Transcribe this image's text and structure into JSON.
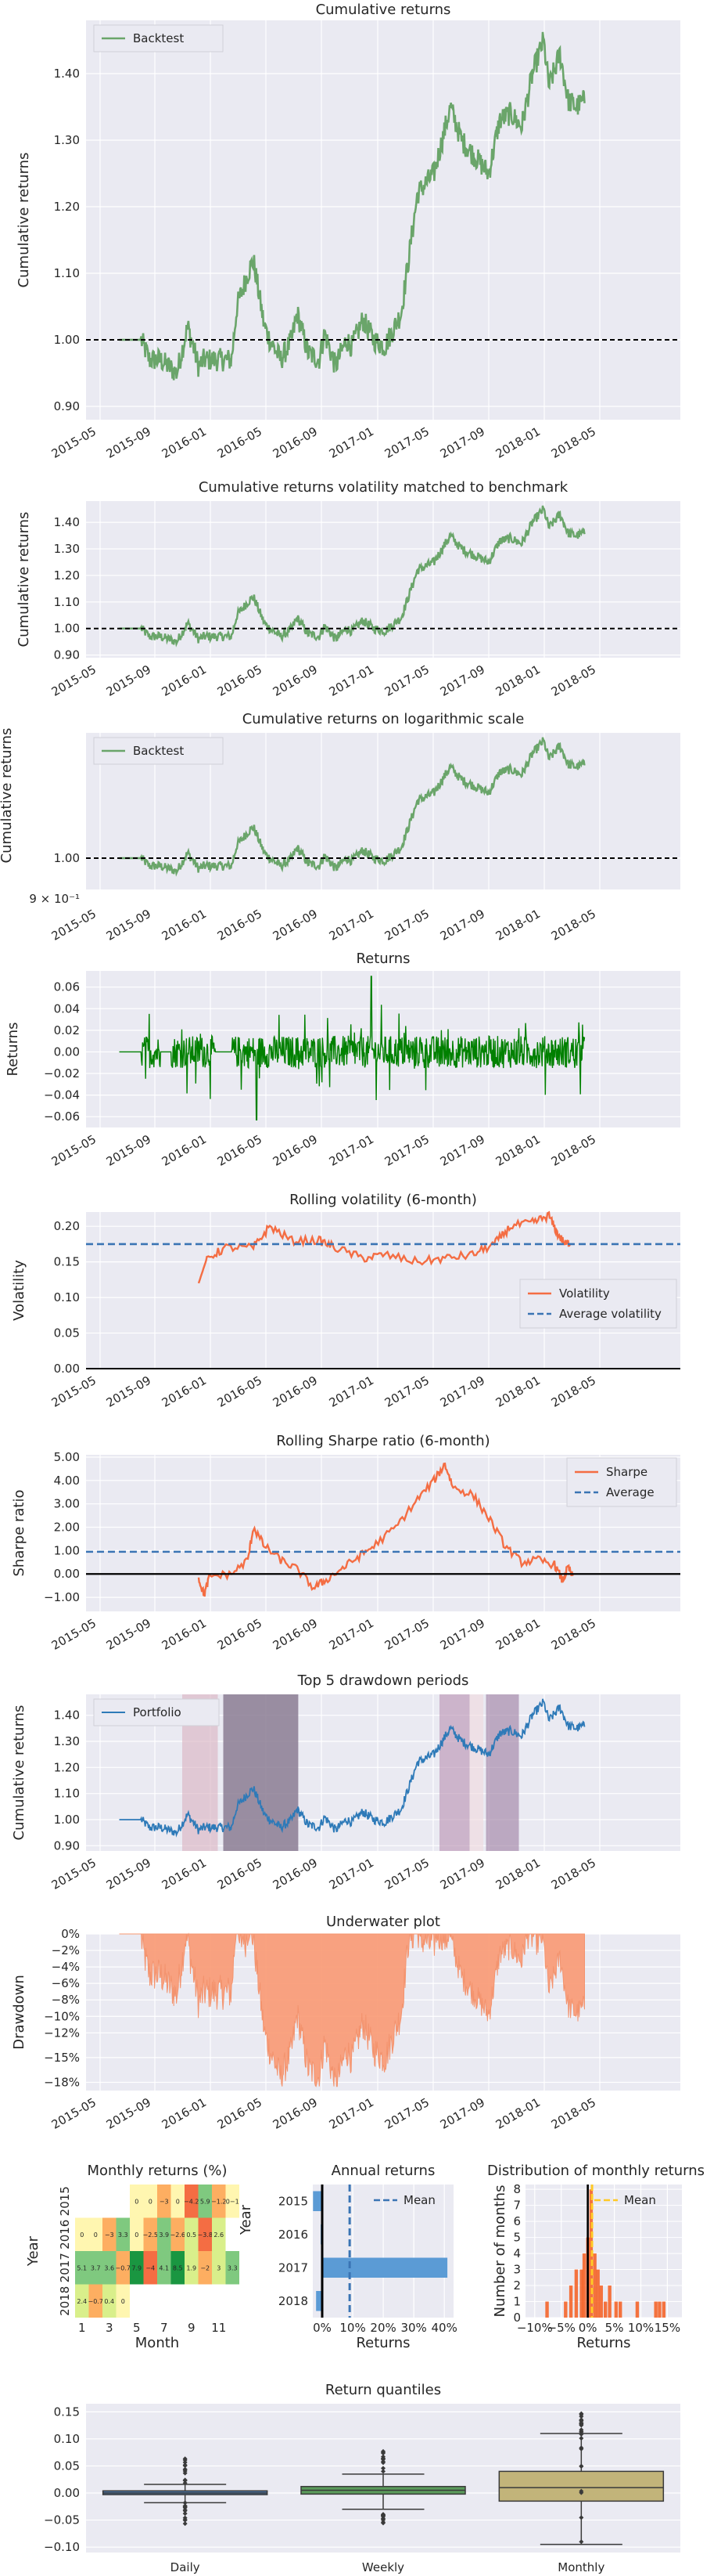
{
  "dates": [
    "2015-05",
    "2015-09",
    "2016-01",
    "2016-05",
    "2016-09",
    "2017-01",
    "2017-05",
    "2017-09",
    "2018-01",
    "2018-05"
  ],
  "colors": {
    "backtest": "#6aa56a",
    "returns": "#008000",
    "orange": "#f46d43",
    "blue_dash": "#3a74b4",
    "portfolio": "#2e7ab8",
    "underwater": "#fa9a74",
    "bar": "#5b9bd5",
    "hist": "#f65d1e",
    "mean_yellow": "#ffc926",
    "box_daily": "#4a76a8",
    "box_weekly": "#5a9a5a",
    "box_monthly": "#c2b47a"
  },
  "p1": {
    "title": "Cumulative returns",
    "ylabel": "Cumulative returns",
    "legend": "Backtest",
    "yticks": [
      "0.90",
      "1.00",
      "1.10",
      "1.20",
      "1.30",
      "1.40"
    ],
    "ymin": 0.88,
    "ymax": 1.48
  },
  "p2": {
    "title": "Cumulative returns volatility matched to benchmark",
    "ylabel": "Cumulative returns",
    "yticks": [
      "0.90",
      "1.00",
      "1.10",
      "1.20",
      "1.30",
      "1.40"
    ],
    "ymin": 0.89,
    "ymax": 1.48
  },
  "p3": {
    "title": "Cumulative returns on logarithmic scale",
    "ylabel": "Cumulative returns",
    "legend": "Backtest",
    "yticks": [
      "9 × 10⁻¹",
      "1.00"
    ],
    "ymin": 0.88,
    "ymax": 1.48
  },
  "p4": {
    "title": "Returns",
    "ylabel": "Returns",
    "yticks": [
      "−0.06",
      "−0.04",
      "−0.02",
      "0.00",
      "0.02",
      "0.04",
      "0.06"
    ],
    "ymin": -0.07,
    "ymax": 0.075
  },
  "p5": {
    "title": "Rolling volatility (6-month)",
    "ylabel": "Volatility",
    "legend": [
      "Volatility",
      "Average volatility"
    ],
    "yticks": [
      "0.00",
      "0.05",
      "0.10",
      "0.15",
      "0.20"
    ],
    "ymin": 0.0,
    "ymax": 0.22,
    "avg": 0.175
  },
  "p6": {
    "title": "Rolling Sharpe ratio (6-month)",
    "ylabel": "Sharpe ratio",
    "legend": [
      "Sharpe",
      "Average"
    ],
    "yticks": [
      "−1.00",
      "0.00",
      "1.00",
      "2.00",
      "3.00",
      "4.00",
      "5.00"
    ],
    "ymin": -1.6,
    "ymax": 5.1,
    "avg": 0.95
  },
  "p7": {
    "title": "Top 5 drawdown periods",
    "ylabel": "Cumulative returns",
    "legend": "Portfolio",
    "yticks": [
      "0.90",
      "1.00",
      "1.10",
      "1.20",
      "1.30",
      "1.40"
    ],
    "ymin": 0.88,
    "ymax": 1.48
  },
  "p8": {
    "title": "Underwater plot",
    "ylabel": "Drawdown",
    "yticks": [
      "0%",
      "−2%",
      "−4%",
      "−6%",
      "−8%",
      "−10%",
      "−12%",
      "−15%",
      "−18%"
    ]
  },
  "heat": {
    "title": "Monthly returns (%)",
    "ylabel": "Year",
    "xlabel": "Month",
    "years": [
      "2015",
      "2016",
      "2017",
      "2018"
    ],
    "months": [
      "1",
      "3",
      "5",
      "7",
      "9",
      "11"
    ],
    "cells": [
      [
        "",
        "",
        "",
        "",
        "0",
        "0",
        "−3",
        "0",
        "−4.2",
        "5.9",
        "−1.2",
        "0−1"
      ],
      [
        "0",
        "0",
        "−3",
        "3.3",
        "0",
        "−2.5",
        "3.9",
        "−2.6",
        "0.5",
        "−3.8",
        "2.6",
        ""
      ],
      [
        "5.1",
        "3.7",
        "3.6",
        "−0.7",
        "7.9",
        "−4",
        "4.1",
        "8.5",
        "1.9",
        "−2",
        "3",
        "3.3"
      ],
      [
        "2.4",
        "−0.7",
        "0.4",
        "0",
        "",
        "",
        "",
        "",
        "",
        "",
        "",
        ""
      ]
    ]
  },
  "annual": {
    "title": "Annual returns",
    "ylabel": "Year",
    "xlabel": "Returns",
    "legend": "Mean",
    "years": [
      "2015",
      "2016",
      "2017",
      "2018"
    ],
    "values": [
      -0.03,
      -0.005,
      0.41,
      -0.02
    ],
    "mean": 0.09,
    "xticks": [
      "0%",
      "10%",
      "20%",
      "30%",
      "40%"
    ]
  },
  "dist": {
    "title": "Distribution of monthly returns",
    "ylabel": "Number of months",
    "xlabel": "Returns",
    "legend": "Mean",
    "xticks": [
      "−10%",
      "−5%",
      "0%",
      "5%",
      "10%",
      "15%"
    ],
    "yticks": [
      "0",
      "1",
      "2",
      "3",
      "4",
      "5",
      "6",
      "7",
      "8"
    ],
    "bins": [
      [
        -0.08,
        1
      ],
      [
        -0.045,
        1
      ],
      [
        -0.035,
        2
      ],
      [
        -0.025,
        3
      ],
      [
        -0.015,
        3
      ],
      [
        -0.01,
        4
      ],
      [
        -0.003,
        5
      ],
      [
        0.003,
        8
      ],
      [
        0.01,
        4
      ],
      [
        0.016,
        3
      ],
      [
        0.022,
        2
      ],
      [
        0.03,
        1
      ],
      [
        0.038,
        2
      ],
      [
        0.05,
        1
      ],
      [
        0.058,
        1
      ],
      [
        0.09,
        1
      ],
      [
        0.125,
        1
      ],
      [
        0.132,
        1
      ],
      [
        0.14,
        1
      ]
    ],
    "mean": 0.008
  },
  "quant": {
    "title": "Return quantiles",
    "labels": [
      "Daily",
      "Weekly",
      "Monthly"
    ],
    "yticks": [
      "−0.10",
      "−0.05",
      "0.00",
      "0.05",
      "0.10",
      "0.15"
    ],
    "ymin": -0.11,
    "ymax": 0.165
  }
}
